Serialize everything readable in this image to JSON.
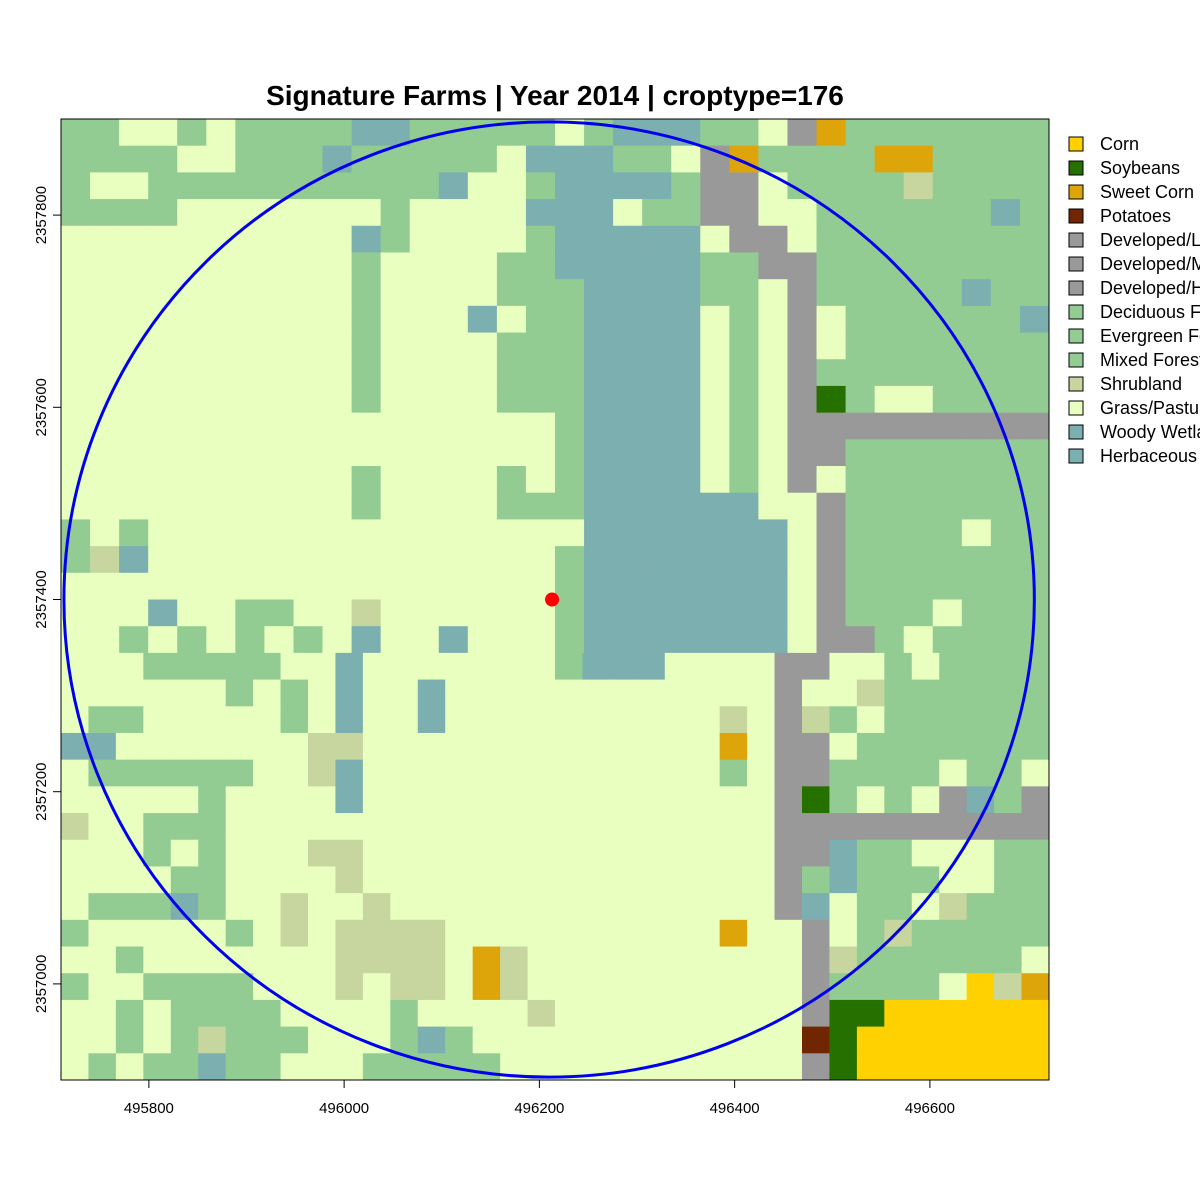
{
  "title": "Signature Farms | Year 2014 | croptype=176",
  "map": {
    "x_range": [
      495710,
      496722
    ],
    "y_range": [
      2356900,
      2357900
    ],
    "x_ticks": [
      {
        "value": 495800,
        "label": "495800"
      },
      {
        "value": 496000,
        "label": "496000"
      },
      {
        "value": 496200,
        "label": "496200"
      },
      {
        "value": 496400,
        "label": "496400"
      },
      {
        "value": 496600,
        "label": "496600"
      }
    ],
    "y_ticks": [
      {
        "value": 2357000,
        "label": "2357000"
      },
      {
        "value": 2357200,
        "label": "2357200"
      },
      {
        "value": 2357400,
        "label": "2357400"
      },
      {
        "value": 2357600,
        "label": "2357600"
      },
      {
        "value": 2357800,
        "label": "2357800"
      }
    ],
    "circle": {
      "center_x": 496210,
      "center_y": 2357400,
      "radius": 497,
      "color": "#0000ee"
    },
    "point": {
      "x": 496213,
      "y": 2357400,
      "color": "#ff0000"
    }
  },
  "legend": {
    "entries": [
      {
        "label": "Corn",
        "color": "#ffd100"
      },
      {
        "label": "Soybeans",
        "color": "#267000"
      },
      {
        "label": "Sweet Corn",
        "color": "#dda50a"
      },
      {
        "label": "Potatoes",
        "color": "#702600"
      },
      {
        "label": "Developed/Low Intensity",
        "color": "#999999"
      },
      {
        "label": "Developed/Med Intensity",
        "color": "#999999"
      },
      {
        "label": "Developed/High Intensity",
        "color": "#999999"
      },
      {
        "label": "Deciduous Forest",
        "color": "#93cc93"
      },
      {
        "label": "Evergreen Forest",
        "color": "#93cc93"
      },
      {
        "label": "Mixed Forest",
        "color": "#93cc93"
      },
      {
        "label": "Shrubland",
        "color": "#c6d69e"
      },
      {
        "label": "Grass/Pasture",
        "color": "#e8ffbf"
      },
      {
        "label": "Woody Wetlands",
        "color": "#7cafaf"
      },
      {
        "label": "Herbaceous Wetlands",
        "color": "#7cafaf"
      }
    ]
  }
}
